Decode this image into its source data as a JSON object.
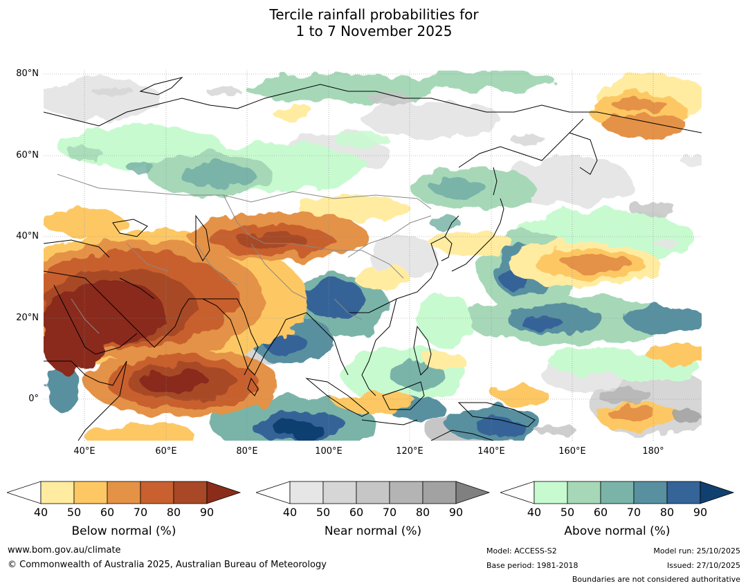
{
  "title": {
    "line1": "Tercile rainfall probabilities for",
    "line2": "1 to 7 November 2025"
  },
  "axes": {
    "lat_labels": [
      "80°N",
      "60°N",
      "40°N",
      "20°N",
      "0°"
    ],
    "lon_labels": [
      "40°E",
      "60°E",
      "80°E",
      "100°E",
      "120°E",
      "140°E",
      "160°E",
      "180°"
    ]
  },
  "map": {
    "region": "Asia, Indian Ocean and western Pacific",
    "lon_range": [
      30,
      192
    ],
    "lat_range": [
      -10,
      81
    ]
  },
  "colorbars": {
    "ticks": [
      "40",
      "50",
      "60",
      "70",
      "80",
      "90"
    ],
    "below": {
      "title": "Below normal (%)",
      "colors": [
        "#ffffff",
        "#ffeca0",
        "#fdc864",
        "#e49246",
        "#c8602f",
        "#a84826",
        "#8a2c1a"
      ]
    },
    "near": {
      "title": "Near normal (%)",
      "colors": [
        "#ffffff",
        "#e6e6e6",
        "#d6d6d6",
        "#c6c6c6",
        "#b4b4b4",
        "#a2a2a2",
        "#808080"
      ]
    },
    "above": {
      "title": "Above normal (%)",
      "colors": [
        "#ffffff",
        "#c8fad0",
        "#a6d8b8",
        "#7ab4a8",
        "#5890a0",
        "#346498",
        "#0f4070"
      ]
    }
  },
  "footer": {
    "website": "www.bom.gov.au/climate",
    "copyright": "© Commonwealth of Australia 2025, Australian Bureau of Meteorology",
    "model": "Model: ACCESS-S2",
    "base_period": "Base period: 1981-2018",
    "model_run": "Model run: 25/10/2025",
    "issued": "Issued: 27/10/2025",
    "disclaimer": "Boundaries are not considered authoritative"
  }
}
